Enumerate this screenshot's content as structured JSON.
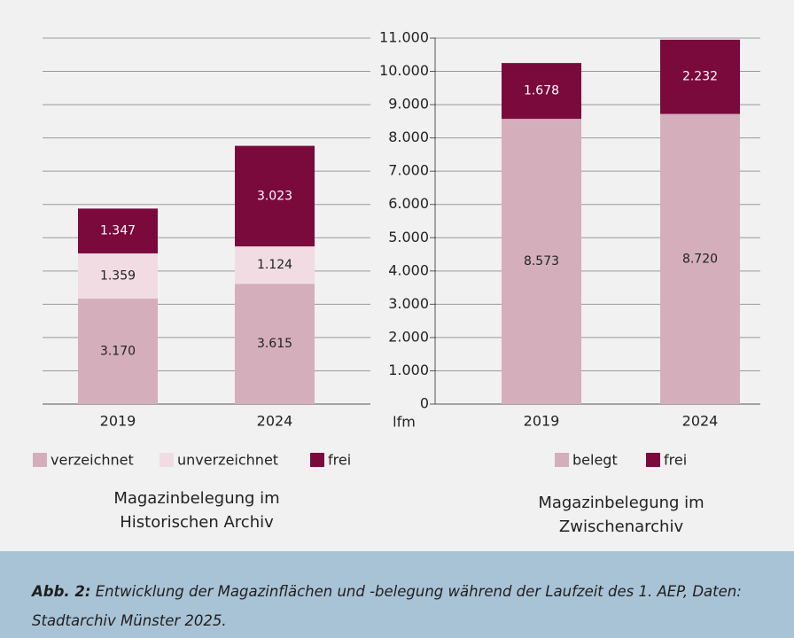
{
  "chart_data": [
    {
      "type": "stacked_bar",
      "title": "Magazinbelegung im Historischen Archiv",
      "categories": [
        "2019",
        "2024"
      ],
      "series": [
        {
          "name": "verzeichnet",
          "color": "#d4afbb",
          "values": [
            3170,
            3615
          ],
          "value_labels": [
            "3.170",
            "3.615"
          ]
        },
        {
          "name": "unverzeichnet",
          "color": "#f0dce2",
          "values": [
            1359,
            1124
          ],
          "value_labels": [
            "1.359",
            "1.124"
          ]
        },
        {
          "name": "frei",
          "color": "#7a0a3c",
          "values": [
            1347,
            3023
          ],
          "value_labels": [
            "1.347",
            "3.023"
          ]
        }
      ],
      "ylabel": "lfm",
      "ylim": [
        0,
        11000
      ],
      "yticks": [
        0,
        {
          "value": 1000,
          "label": "1.000"
        },
        {
          "value": 2000,
          "label": "2.000"
        },
        {
          "value": 3000,
          "label": "3.000"
        },
        {
          "value": 4000,
          "label": "4.000"
        },
        {
          "value": 5000,
          "label": "5.000"
        },
        {
          "value": 6000,
          "label": "6.000"
        },
        {
          "value": 7000,
          "label": "7.000"
        },
        {
          "value": 8000,
          "label": "8.000"
        },
        {
          "value": 9000,
          "label": "9.000"
        },
        {
          "value": 10000,
          "label": "10.000"
        },
        {
          "value": 11000,
          "label": "11.000"
        }
      ],
      "grid": true
    },
    {
      "type": "stacked_bar",
      "title": "Magazinbelegung im Zwischenarchiv",
      "categories": [
        "2019",
        "2024"
      ],
      "series": [
        {
          "name": "belegt",
          "color": "#d4afbb",
          "values": [
            8573,
            8720
          ],
          "value_labels": [
            "8.573",
            "8.720"
          ]
        },
        {
          "name": "frei",
          "color": "#7a0a3c",
          "values": [
            1678,
            2232
          ],
          "value_labels": [
            "1.678",
            "2.232"
          ]
        }
      ],
      "ylim": [
        0,
        11000
      ]
    }
  ],
  "caption": {
    "label": "Abb. 2:",
    "text": "Entwicklung der Magazinflächen und -belegung während der Laufzeit des 1. AEP, Daten: Stadtarchiv Münster 2025."
  }
}
